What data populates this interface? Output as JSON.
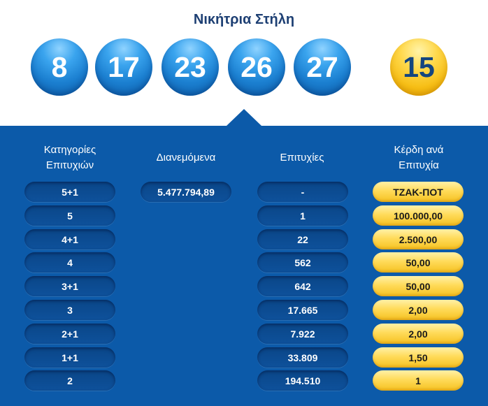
{
  "title": "Νικήτρια Στήλη",
  "winning_numbers": [
    "8",
    "17",
    "23",
    "26",
    "27"
  ],
  "bonus_number": "15",
  "colors": {
    "panel": "#0c5aa9",
    "blue_ball": "#1b7fd0",
    "gold_ball": "#f6bd13",
    "title": "#1d3f73"
  },
  "table": {
    "headers": {
      "categories": "Κατηγορίες\nΕπιτυχιών",
      "distributed": "Διανεμόμενα",
      "winners": "Επιτυχίες",
      "prize": "Κέρδη ανά\nΕπιτυχία"
    },
    "distributed_amount": "5.477.794,89",
    "rows": [
      {
        "category": "5+1",
        "winners": "-",
        "prize": "ΤΖΑΚ-ΠΟΤ"
      },
      {
        "category": "5",
        "winners": "1",
        "prize": "100.000,00"
      },
      {
        "category": "4+1",
        "winners": "22",
        "prize": "2.500,00"
      },
      {
        "category": "4",
        "winners": "562",
        "prize": "50,00"
      },
      {
        "category": "3+1",
        "winners": "642",
        "prize": "50,00"
      },
      {
        "category": "3",
        "winners": "17.665",
        "prize": "2,00"
      },
      {
        "category": "2+1",
        "winners": "7.922",
        "prize": "2,00"
      },
      {
        "category": "1+1",
        "winners": "33.809",
        "prize": "1,50"
      },
      {
        "category": "2",
        "winners": "194.510",
        "prize": "1"
      }
    ]
  }
}
